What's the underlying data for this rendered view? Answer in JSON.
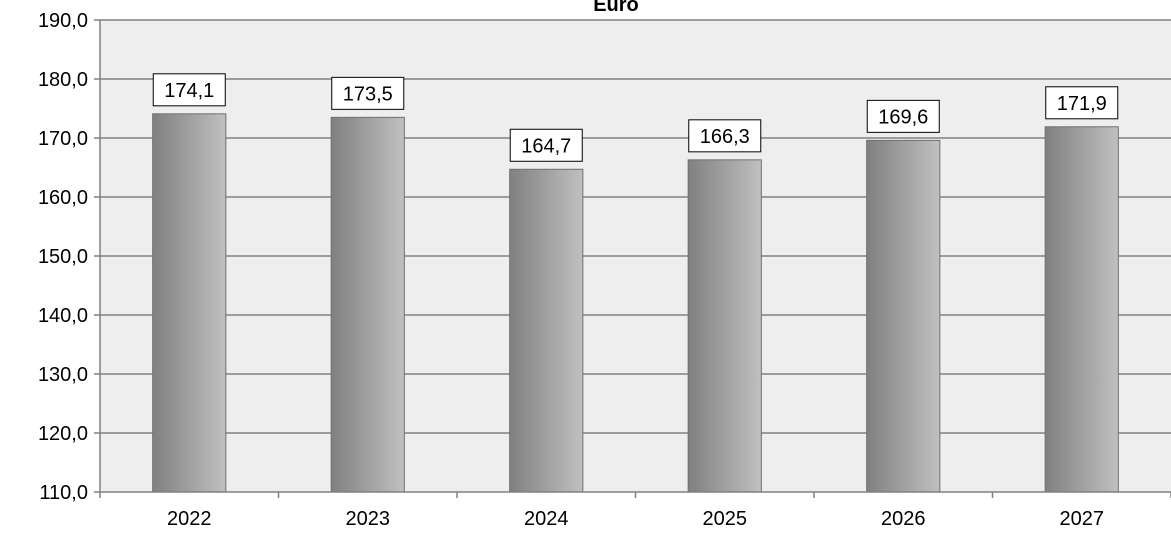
{
  "chart_data": {
    "type": "bar",
    "title": "Euro",
    "categories": [
      "2022",
      "2023",
      "2024",
      "2025",
      "2026",
      "2027"
    ],
    "values": [
      174.1,
      173.5,
      164.7,
      166.3,
      169.6,
      171.9
    ],
    "value_labels": [
      "174,1",
      "173,5",
      "164,7",
      "166,3",
      "169,6",
      "171,9"
    ],
    "ylim": [
      110,
      190
    ],
    "yticks": [
      110,
      120,
      130,
      140,
      150,
      160,
      170,
      180,
      190
    ],
    "ytick_labels": [
      "110,0",
      "120,0",
      "130,0",
      "140,0",
      "150,0",
      "160,0",
      "170,0",
      "180,0",
      "190,0"
    ],
    "xlabel": "",
    "ylabel": "",
    "grid": true,
    "legend": "none",
    "colors": {
      "plot_background": "#eeeeee",
      "gridline": "#808080",
      "bar_dark": "#808080",
      "bar_light": "#c0c0c0",
      "label_box": "#ffffff"
    }
  }
}
